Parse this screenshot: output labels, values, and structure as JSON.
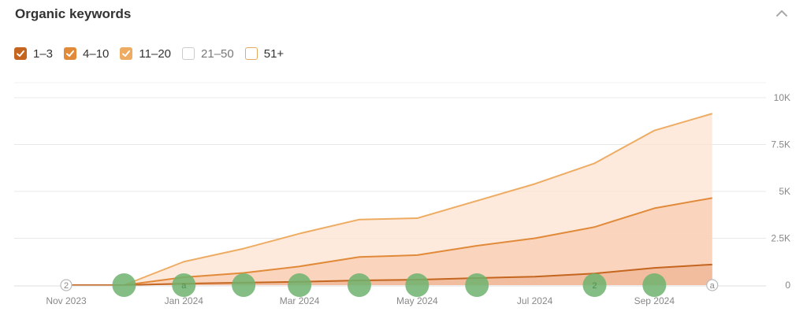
{
  "header": {
    "title": "Organic keywords"
  },
  "legend": [
    {
      "label": "1–3",
      "checked": true,
      "color": "#c4661f"
    },
    {
      "label": "4–10",
      "checked": true,
      "color": "#e08a3a"
    },
    {
      "label": "11–20",
      "checked": true,
      "color": "#eeac63"
    },
    {
      "label": "21–50",
      "checked": false,
      "color": "#cccccc"
    },
    {
      "label": "51+",
      "checked": false,
      "color": "#e3aa62"
    }
  ],
  "icons": {
    "collapse": "chevron-up-icon"
  },
  "chart_data": {
    "type": "area",
    "title": "",
    "xlabel": "",
    "ylabel": "",
    "ylim": [
      0,
      10000
    ],
    "grid": true,
    "y_axis_side": "right",
    "y_ticks": [
      {
        "value": 0,
        "label": "0"
      },
      {
        "value": 2500,
        "label": "2.5K"
      },
      {
        "value": 5000,
        "label": "5K"
      },
      {
        "value": 7500,
        "label": "7.5K"
      },
      {
        "value": 10000,
        "label": "10K"
      }
    ],
    "x_ticks": [
      {
        "date": "2023-11-01",
        "label": "Nov 2023"
      },
      {
        "date": "2024-01-01",
        "label": "Jan 2024"
      },
      {
        "date": "2024-03-01",
        "label": "Mar 2024"
      },
      {
        "date": "2024-05-01",
        "label": "May 2024"
      },
      {
        "date": "2024-07-01",
        "label": "Jul 2024"
      },
      {
        "date": "2024-09-01",
        "label": "Sep 2024"
      }
    ],
    "x_range": [
      "2023-11-01",
      "2024-10-15"
    ],
    "x": [
      "2023-11-01",
      "2023-12-01",
      "2024-01-01",
      "2024-02-01",
      "2024-03-01",
      "2024-04-01",
      "2024-05-01",
      "2024-06-01",
      "2024-07-01",
      "2024-08-01",
      "2024-09-01",
      "2024-10-01"
    ],
    "series": [
      {
        "name": "11–20",
        "color": "#eeac63",
        "fill": "#fde3d1",
        "values": [
          0,
          0,
          1250,
          1950,
          2750,
          3500,
          3570,
          4500,
          5400,
          6500,
          8250,
          9150
        ]
      },
      {
        "name": "4–10",
        "color": "#e08a3a",
        "fill": "#f8ccb0",
        "values": [
          0,
          0,
          420,
          650,
          1000,
          1500,
          1600,
          2100,
          2500,
          3100,
          4100,
          4650
        ]
      },
      {
        "name": "1–3",
        "color": "#c4661f",
        "fill": "#efb594",
        "values": [
          0,
          0,
          80,
          130,
          180,
          250,
          290,
          380,
          450,
          620,
          920,
          1100
        ]
      }
    ],
    "annotations": [
      {
        "date": "2023-11-01",
        "label": "2",
        "kind": "marker"
      },
      {
        "date": "2023-12-01",
        "label": "",
        "kind": "update"
      },
      {
        "date": "2024-01-01",
        "label": "a",
        "kind": "update"
      },
      {
        "date": "2024-02-01",
        "label": "",
        "kind": "update"
      },
      {
        "date": "2024-03-01",
        "label": "",
        "kind": "update"
      },
      {
        "date": "2024-04-01",
        "label": "",
        "kind": "update"
      },
      {
        "date": "2024-05-01",
        "label": "",
        "kind": "update"
      },
      {
        "date": "2024-06-01",
        "label": "",
        "kind": "update"
      },
      {
        "date": "2024-08-01",
        "label": "2",
        "kind": "update"
      },
      {
        "date": "2024-09-01",
        "label": "",
        "kind": "update"
      },
      {
        "date": "2024-10-01",
        "label": "a",
        "kind": "marker"
      }
    ],
    "colors": {
      "update_marker": "#6fb36f",
      "grid": "#e8e8e8"
    }
  }
}
